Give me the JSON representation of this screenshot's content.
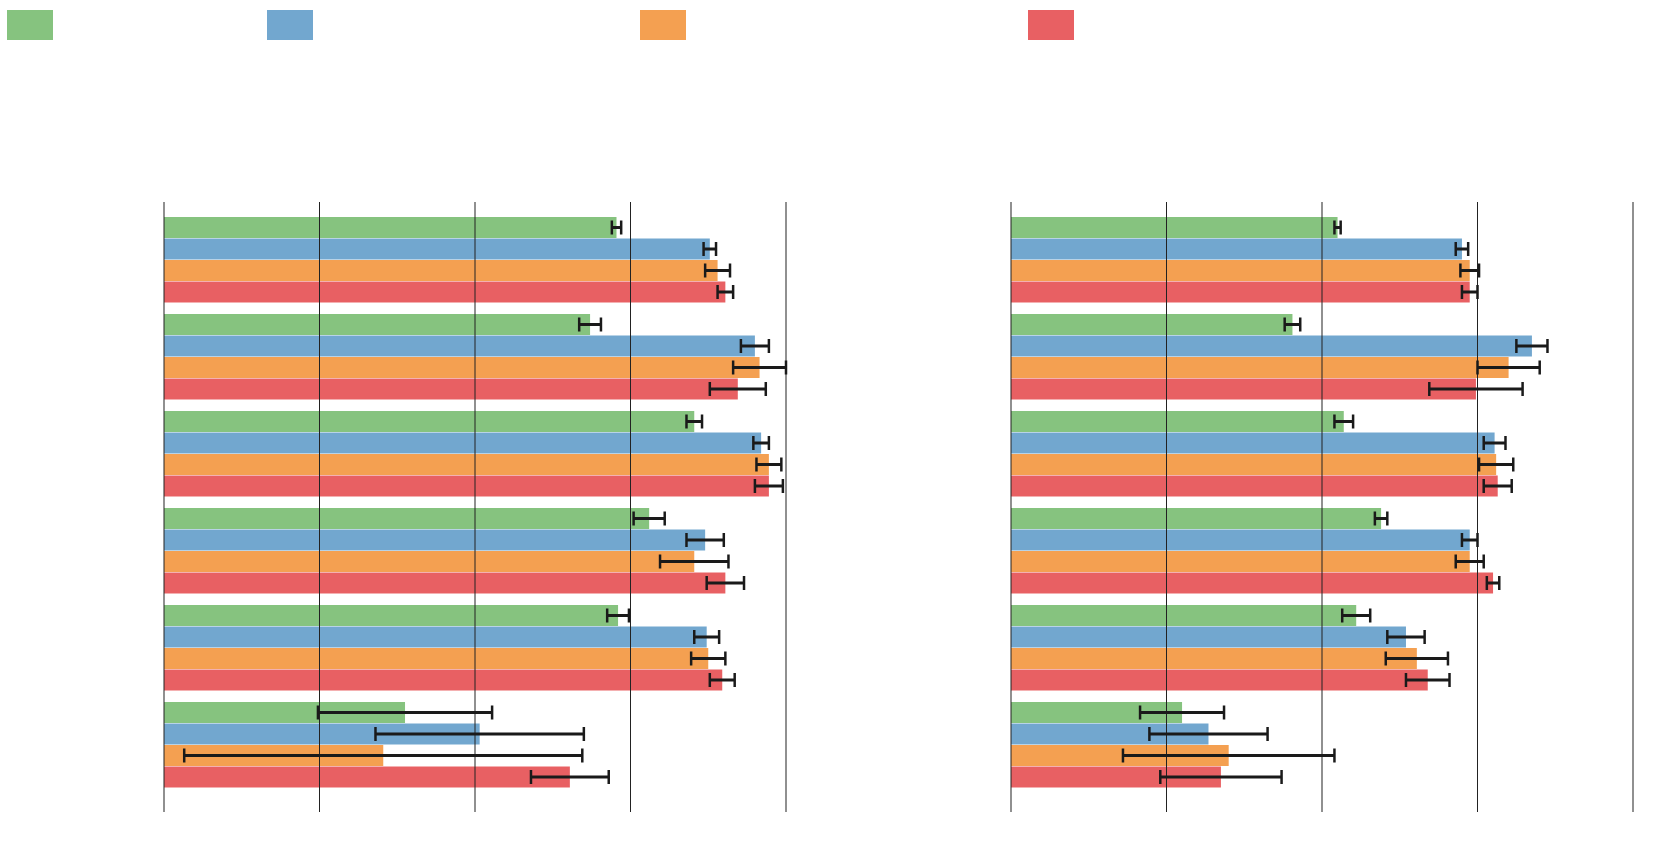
{
  "chart_data": {
    "type": "bar",
    "orientation": "horizontal",
    "title": "",
    "legend": {
      "placement": "top",
      "entries": [
        {
          "name": "",
          "color": "#86c37f"
        },
        {
          "name": "",
          "color": "#72a7cf"
        },
        {
          "name": "",
          "color": "#f4a051"
        },
        {
          "name": "",
          "color": "#e86063"
        }
      ]
    },
    "colors": [
      "#86c37f",
      "#72a7cf",
      "#f4a051",
      "#e86063"
    ],
    "grid": true,
    "panels": [
      {
        "xlim": [
          0,
          4
        ],
        "categories": [
          "",
          "",
          "",
          "",
          "",
          ""
        ],
        "series": [
          {
            "name": "",
            "values": [
              2.91,
              2.74,
              3.41,
              3.12,
              2.92,
              1.55
            ],
            "errors": [
              0.03,
              0.07,
              0.05,
              0.1,
              0.07,
              0.56
            ]
          },
          {
            "name": "",
            "values": [
              3.51,
              3.8,
              3.84,
              3.48,
              3.49,
              2.03
            ],
            "errors": [
              0.04,
              0.09,
              0.05,
              0.12,
              0.08,
              0.67
            ]
          },
          {
            "name": "",
            "values": [
              3.56,
              3.83,
              3.89,
              3.41,
              3.5,
              1.41
            ],
            "errors": [
              0.08,
              0.17,
              0.08,
              0.22,
              0.11,
              1.28
            ]
          },
          {
            "name": "",
            "values": [
              3.61,
              3.69,
              3.89,
              3.61,
              3.59,
              2.61
            ],
            "errors": [
              0.05,
              0.18,
              0.09,
              0.12,
              0.08,
              0.25
            ]
          }
        ]
      },
      {
        "xlim": [
          0,
          4
        ],
        "categories": [
          "",
          "",
          "",
          "",
          "",
          ""
        ],
        "series": [
          {
            "name": "",
            "values": [
              2.1,
              1.81,
              2.14,
              2.38,
              2.22,
              1.1
            ],
            "errors": [
              0.02,
              0.05,
              0.06,
              0.04,
              0.09,
              0.27
            ]
          },
          {
            "name": "",
            "values": [
              2.9,
              3.35,
              3.11,
              2.95,
              2.54,
              1.27
            ],
            "errors": [
              0.04,
              0.1,
              0.07,
              0.05,
              0.12,
              0.38
            ]
          },
          {
            "name": "",
            "values": [
              2.95,
              3.2,
              3.12,
              2.95,
              2.61,
              1.4
            ],
            "errors": [
              0.06,
              0.2,
              0.11,
              0.09,
              0.2,
              0.68
            ]
          },
          {
            "name": "",
            "values": [
              2.95,
              2.99,
              3.13,
              3.1,
              2.68,
              1.35
            ],
            "errors": [
              0.05,
              0.3,
              0.09,
              0.04,
              0.14,
              0.39
            ]
          }
        ]
      }
    ]
  }
}
